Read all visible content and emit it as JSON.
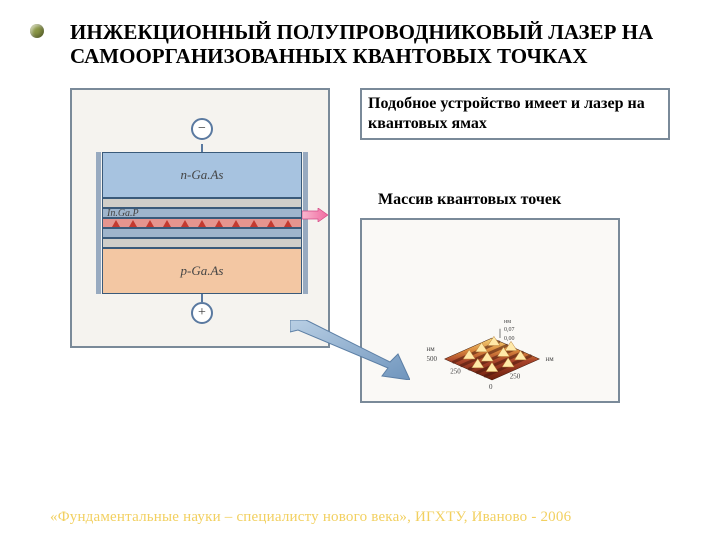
{
  "title": "ИНЖЕКЦИОННЫЙ ПОЛУПРОВОДНИКОВЫЙ ЛАЗЕР НА САМООРГАНИЗОВАННЫХ КВАНТОВЫХ ТОЧКАХ",
  "captions": {
    "similar_device": "Подобное устройство имеет и лазер на квантовых ямах",
    "qd_array": "Массив квантовых точек"
  },
  "device": {
    "terminal_top_sign": "−",
    "terminal_bot_sign": "+",
    "layers": {
      "n_layer": "n-Ga.As",
      "spacer_label": "In.Ga.P",
      "p_layer": "p-Ga.As"
    },
    "colors": {
      "n": "#a7c3e0",
      "p": "#f3c7a3",
      "spacer_gray": "#d0cec9",
      "spacer_blue": "#9fb5cc",
      "qd_bg": "#e5958f",
      "qd_dot": "#c43a30",
      "border": "#3a5a7a"
    },
    "qd_count": 11,
    "emission_arrow_color": "#f06aa0"
  },
  "afm": {
    "axis_labels": {
      "x": "0",
      "x2": "250",
      "x_unit": "нм",
      "x_max": "500",
      "y_unit": "нм",
      "y_mid": "250",
      "y_max": "500",
      "z_unit": "нм",
      "z_top": "0,07",
      "z_bot": "0,00"
    },
    "surface_color_high": "#f6d77a",
    "surface_color_low": "#6b1f0d",
    "peak_color": "#ffe9a8",
    "bg": "#faf9f6",
    "ridge_count": 6,
    "peaks": [
      {
        "u": 0.2,
        "v": 0.2
      },
      {
        "u": 0.48,
        "v": 0.14
      },
      {
        "u": 0.78,
        "v": 0.18
      },
      {
        "u": 0.14,
        "v": 0.44
      },
      {
        "u": 0.4,
        "v": 0.5
      },
      {
        "u": 0.68,
        "v": 0.44
      },
      {
        "u": 0.9,
        "v": 0.5
      },
      {
        "u": 0.26,
        "v": 0.74
      },
      {
        "u": 0.56,
        "v": 0.78
      },
      {
        "u": 0.84,
        "v": 0.8
      }
    ]
  },
  "pointer_arrow_color": "#7ea3c9",
  "footer": "«Фундаментальные науки – специалисту нового века», ИГХТУ, Иваново - 2006",
  "footer_color": "#f2d060"
}
